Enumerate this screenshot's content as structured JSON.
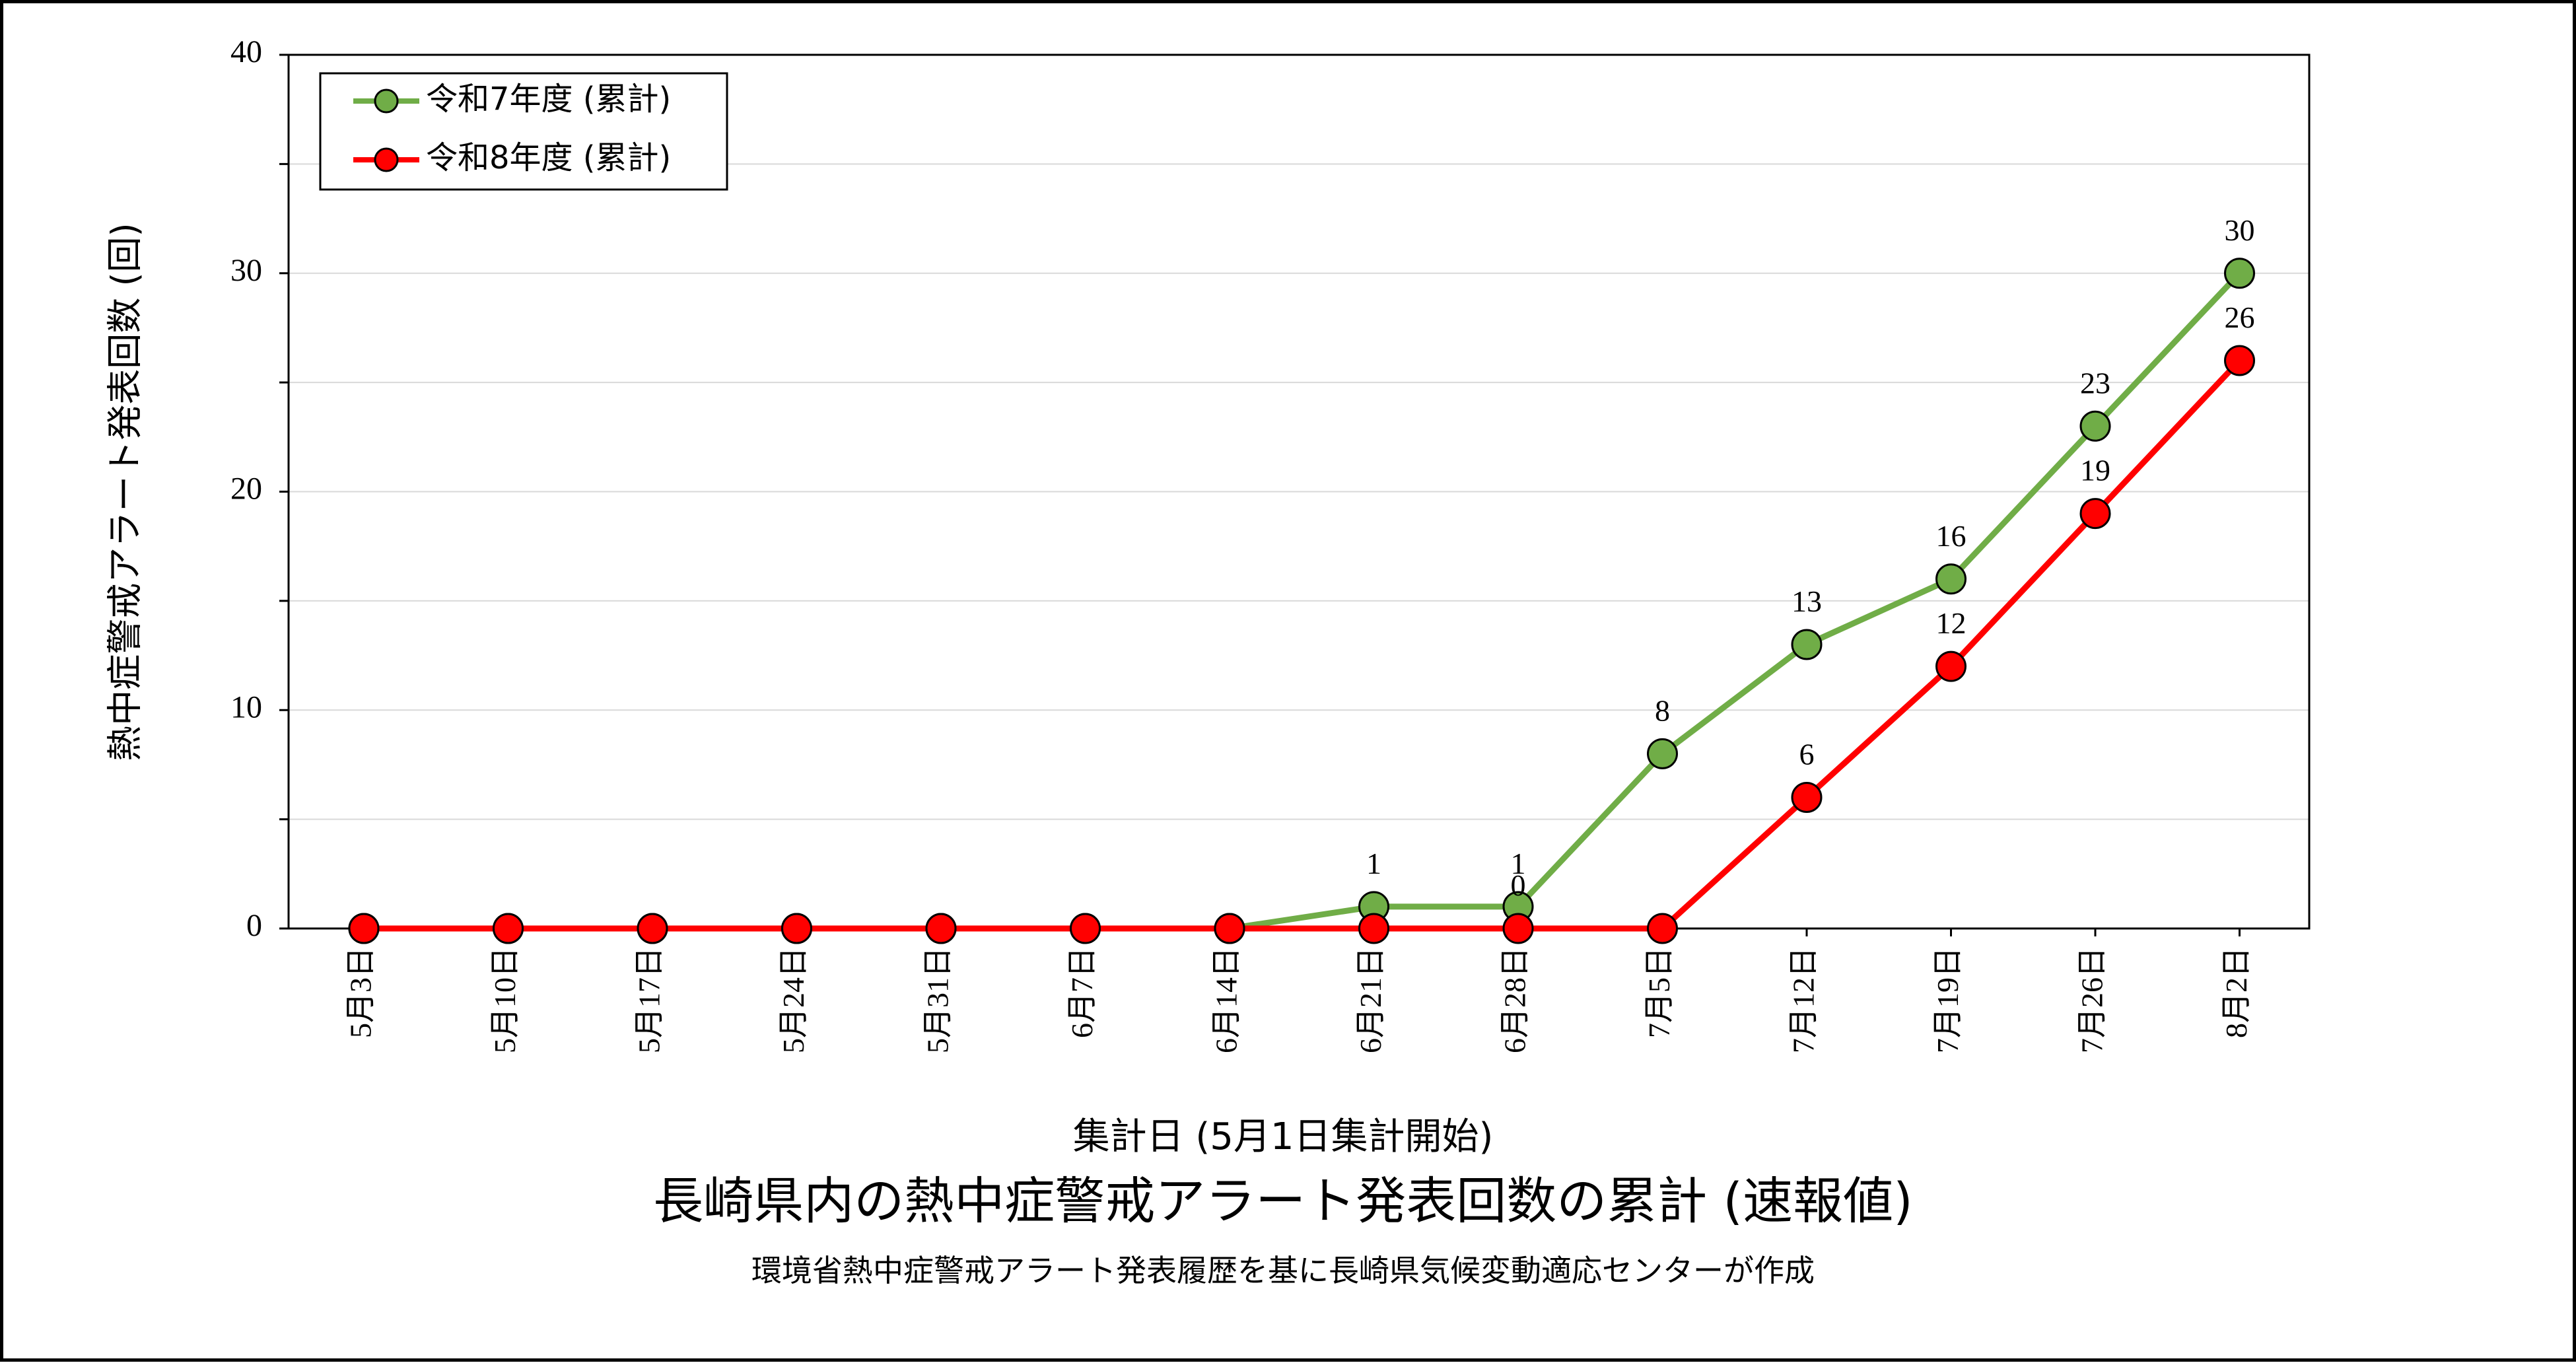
{
  "chart_data": {
    "type": "line",
    "title": "長崎県内の熱中症警戒アラート発表回数の累計 (速報値)",
    "subtitle": "環境省熱中症警戒アラート発表履歴を基に長崎県気候変動適応センターが作成",
    "xlabel": "集計日 (5月1日集計開始)",
    "ylabel": "熱中症警戒アラート発表回数 (回)",
    "ylim": [
      0,
      40
    ],
    "y_ticks": [
      "0",
      "10",
      "20",
      "30",
      "40"
    ],
    "grid": true,
    "legend_position": "top-left",
    "categories": [
      "5月3日",
      "5月10日",
      "5月17日",
      "5月24日",
      "5月31日",
      "6月7日",
      "6月14日",
      "6月21日",
      "6月28日",
      "7月5日",
      "7月12日",
      "7月19日",
      "7月26日",
      "8月2日"
    ],
    "series": [
      {
        "name": "令和7年度 (累計)",
        "color": "#70ad47",
        "values": [
          0,
          0,
          0,
          0,
          0,
          0,
          0,
          1,
          1,
          8,
          13,
          16,
          23,
          30
        ],
        "labels": [
          "",
          "",
          "",
          "",
          "",
          "",
          "",
          "1",
          "1",
          "8",
          "13",
          "16",
          "23",
          "30"
        ]
      },
      {
        "name": "令和8年度 (累計)",
        "color": "#ff0000",
        "values": [
          0,
          0,
          0,
          0,
          0,
          0,
          0,
          0,
          0,
          0,
          6,
          12,
          19,
          26
        ],
        "labels": [
          "",
          "",
          "",
          "",
          "",
          "",
          "",
          "",
          "0",
          "",
          "6",
          "12",
          "19",
          "26"
        ]
      }
    ]
  }
}
